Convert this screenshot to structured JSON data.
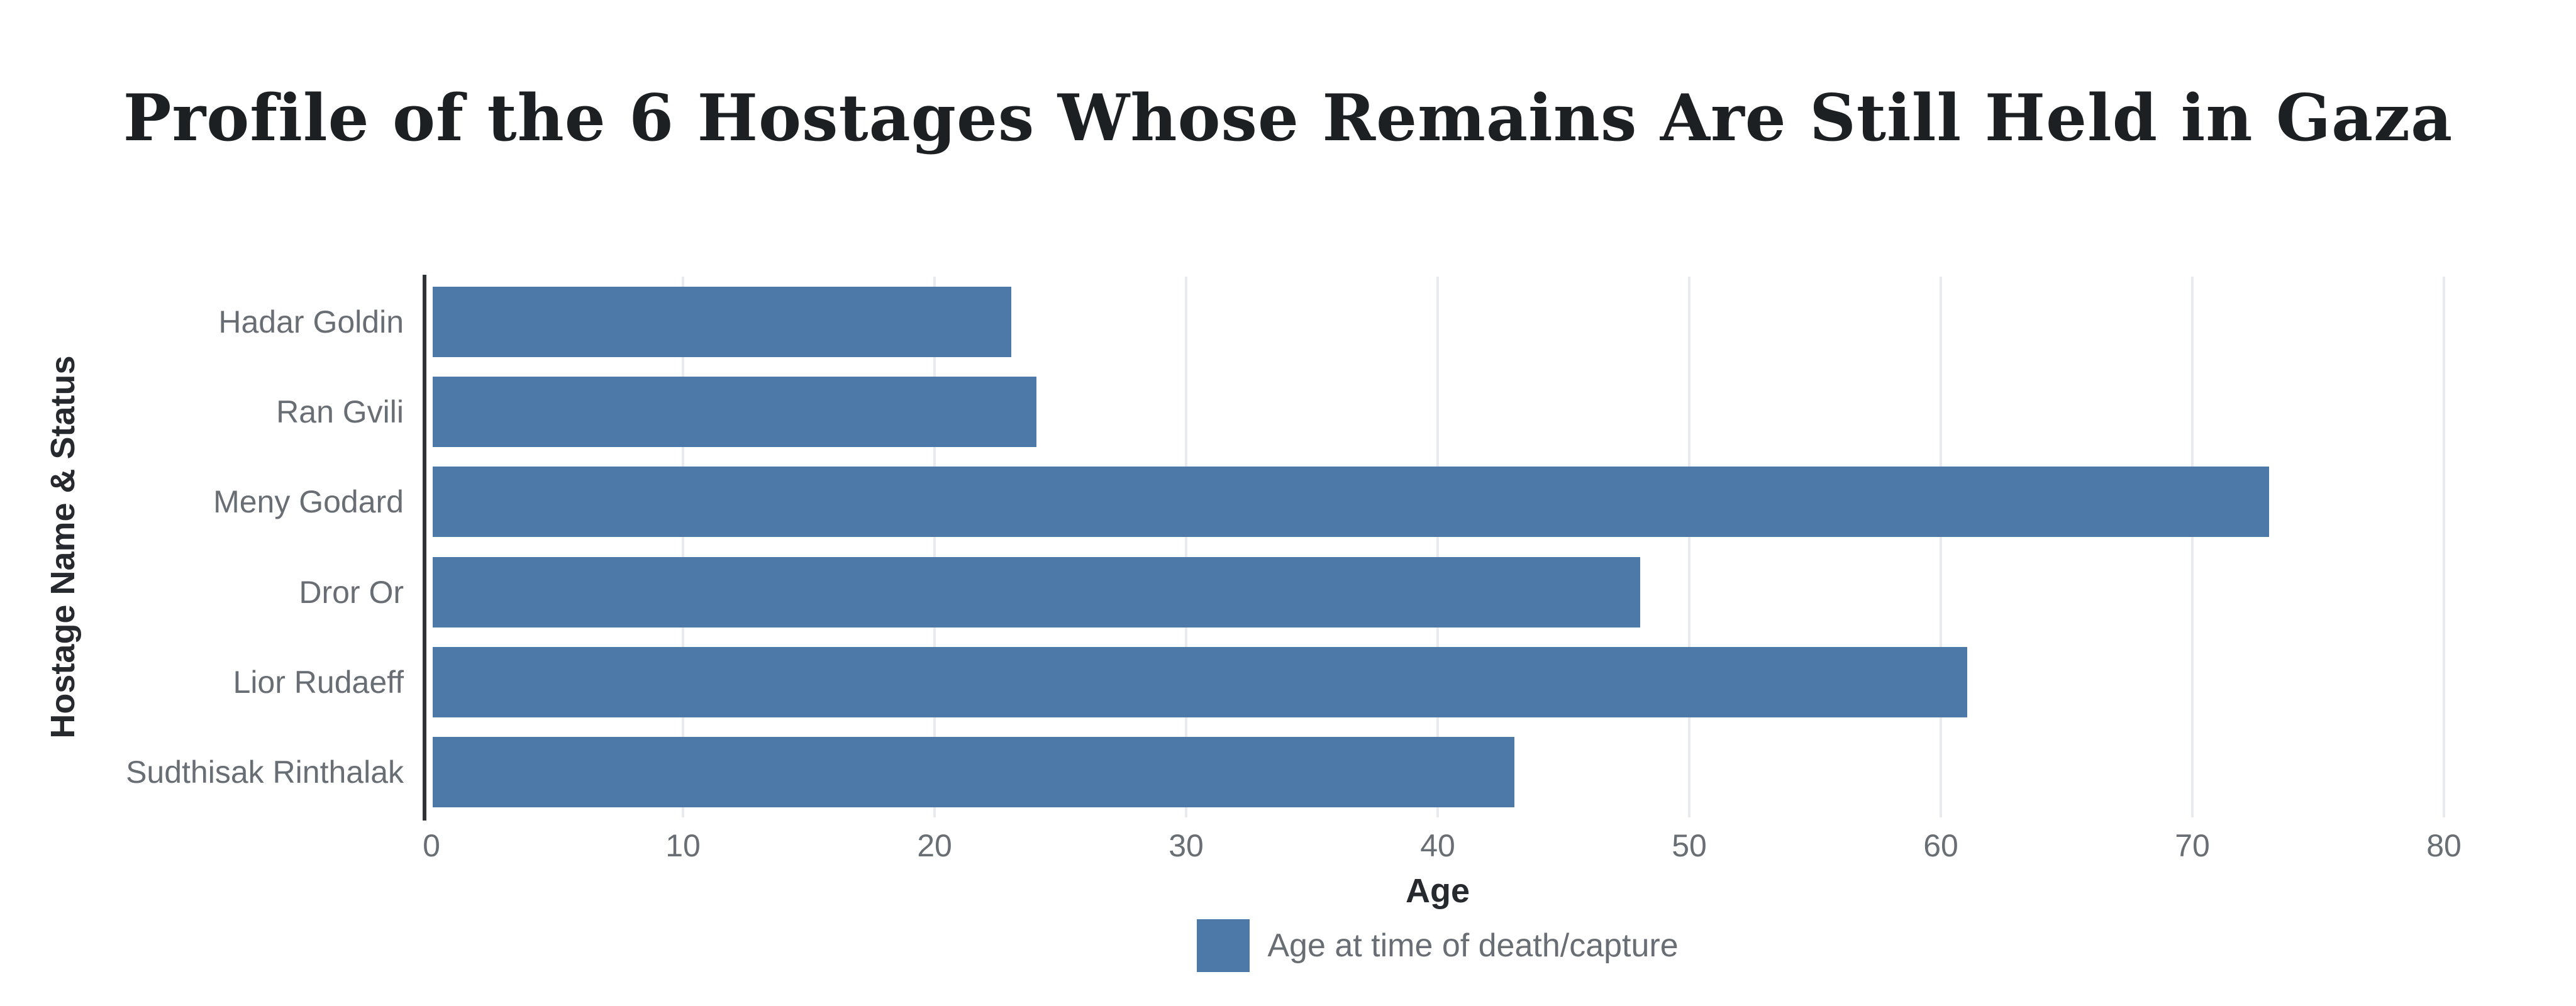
{
  "title": "Profile of the 6 Hostages Whose Remains Are Still Held in Gaza",
  "chart_data": {
    "type": "bar",
    "orientation": "horizontal",
    "title": "Profile of the 6 Hostages Whose Remains Are Still Held in Gaza",
    "categories": [
      "Hadar Goldin",
      "Ran Gvili",
      "Meny Godard",
      "Dror Or",
      "Lior Rudaeff",
      "Sudthisak Rinthalak"
    ],
    "values": [
      23,
      24,
      73,
      48,
      61,
      43
    ],
    "series_name": "Age at time of death/capture",
    "xlabel": "Age",
    "ylabel": "Hostage Name & Status",
    "xlim": [
      0,
      80
    ],
    "x_ticks": [
      0,
      10,
      20,
      30,
      40,
      50,
      60,
      70,
      80
    ],
    "grid": true,
    "legend_position": "bottom",
    "colors": {
      "bar": "#4d79a8",
      "gridline": "#e9eaee",
      "axis_line": "#2e3135",
      "tick_label": "#696e74",
      "axis_title": "#26292d",
      "title": "#1d2023",
      "background": "#ffffff"
    }
  }
}
